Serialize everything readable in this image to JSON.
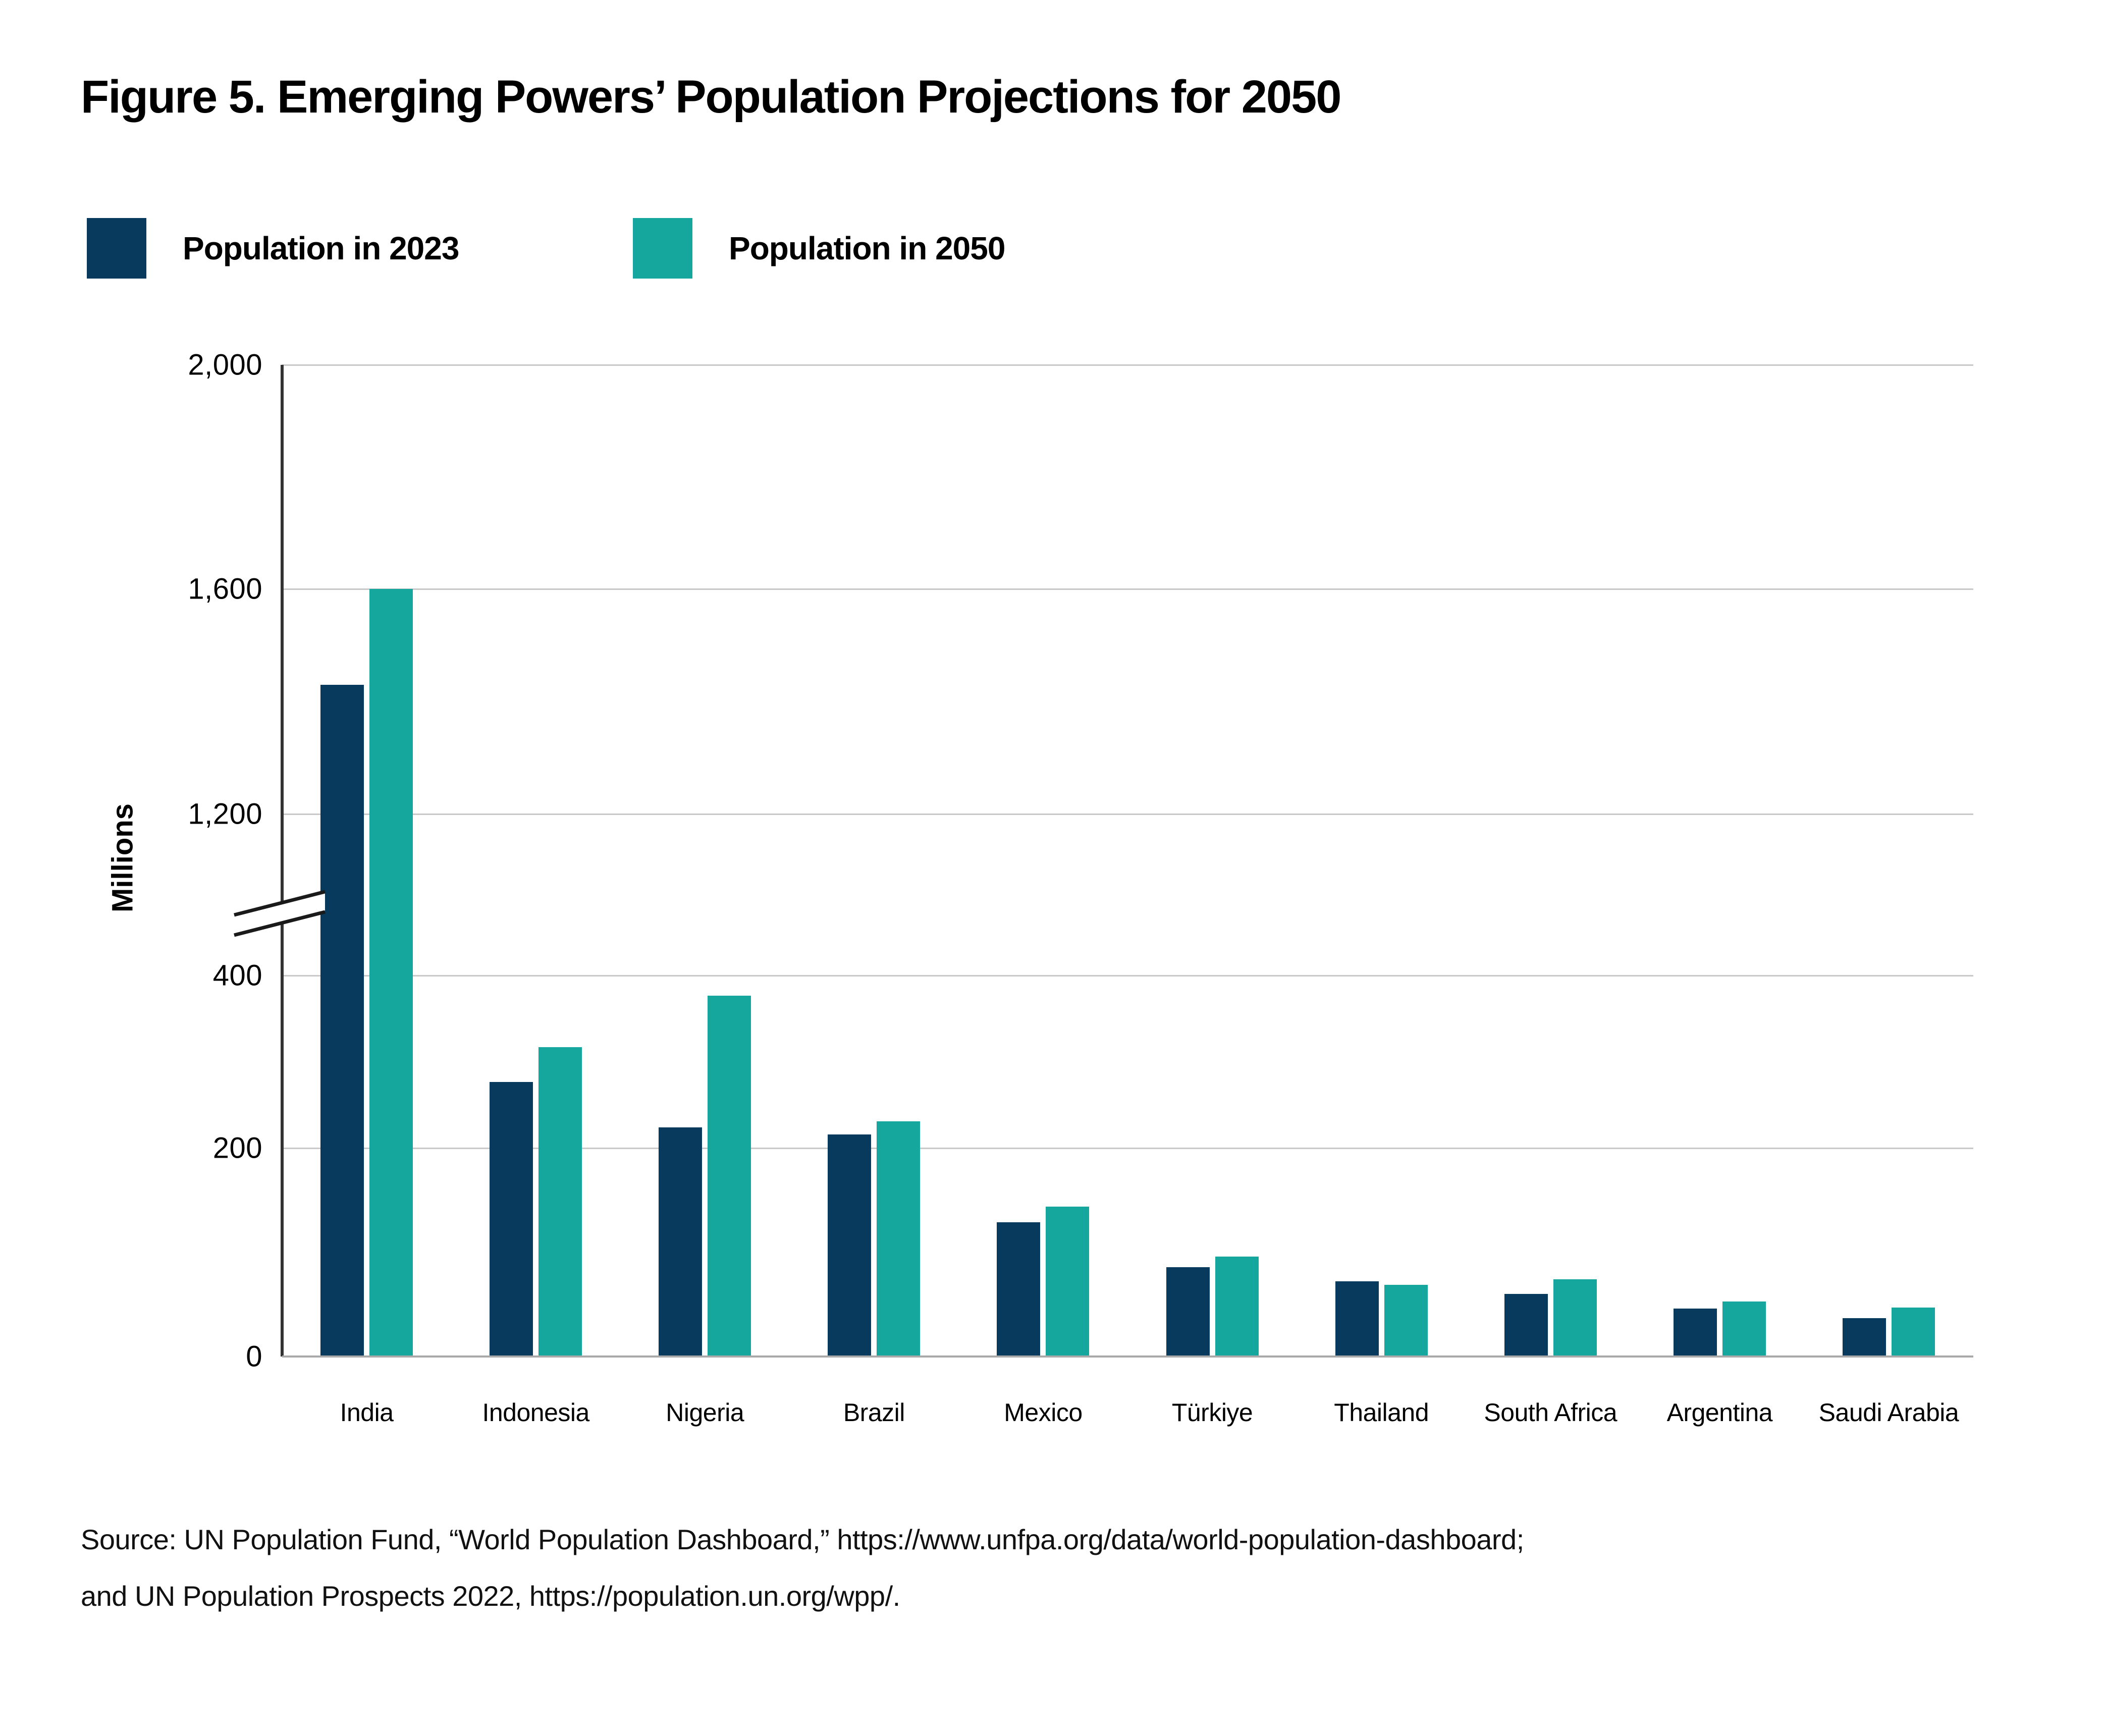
{
  "figure": {
    "title": "Figure 5. Emerging Powers’ Population Projections for 2050",
    "source_line1": "Source: UN Population Fund, “World Population Dashboard,” https://www.unfpa.org/data/world-population-dashboard;",
    "source_line2": "and UN Population Prospects 2022,  https://population.un.org/wpp/."
  },
  "colors": {
    "series_2023": "#083A5E",
    "series_2050": "#15A79D",
    "gridline": "#c9c9c9",
    "y_axis": "#333333",
    "x_axis": "#a9a9a9",
    "text": "#000000"
  },
  "chart_data": {
    "type": "bar",
    "title": "Figure 5. Emerging Powers’ Population Projections for 2050",
    "xlabel": "",
    "ylabel": "Millions",
    "categories": [
      "India",
      "Indonesia",
      "Nigeria",
      "Brazil",
      "Mexico",
      "Türkiye",
      "Thailand",
      "South Africa",
      "Argentina",
      "Saudi Arabia"
    ],
    "series": [
      {
        "name": "Population in 2023",
        "color": "#083A5E",
        "values": [
          1430,
          277,
          224,
          216,
          129,
          86,
          72,
          60,
          46,
          37
        ]
      },
      {
        "name": "Population in 2050",
        "color": "#15A79D",
        "values": [
          1600,
          317,
          377,
          231,
          144,
          96,
          69,
          74,
          53,
          47
        ]
      }
    ],
    "unit": "Millions",
    "ylim": [
      0,
      2000
    ],
    "y_ticks": [
      0,
      200,
      400,
      1200,
      1600,
      2000
    ],
    "y_tick_labels": [
      "0",
      "200",
      "400",
      "1,200",
      "1,600",
      "2,000"
    ],
    "axis_break": {
      "between": [
        400,
        1200
      ]
    },
    "grid": true,
    "legend_position": "top-left",
    "layout": {
      "anchors": [
        [
          0,
          0.0
        ],
        [
          200,
          0.21
        ],
        [
          400,
          0.384
        ],
        [
          1200,
          0.547
        ],
        [
          1600,
          0.774
        ],
        [
          2000,
          1.0
        ]
      ],
      "break_fraction": 0.447
    }
  }
}
